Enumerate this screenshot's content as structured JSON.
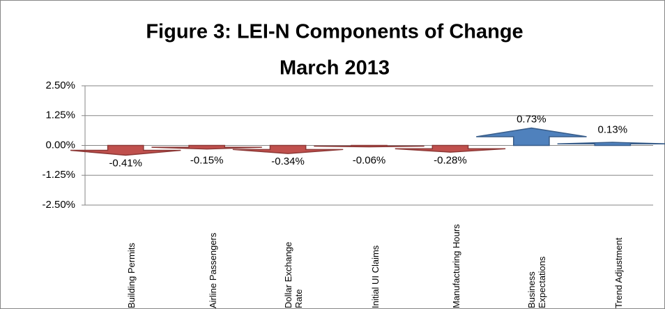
{
  "chart_data": {
    "type": "arrow-bar",
    "title": "Figure 3: LEI-N Components of Change",
    "subtitle": "March 2013",
    "categories": [
      "Building Permits",
      "Airline Passengers",
      "Dollar Exchange Rate",
      "Initial UI Claims",
      "Manufacturing Hours",
      "Business Expectations",
      "Trend Adjustment"
    ],
    "values": [
      -0.41,
      -0.15,
      -0.34,
      -0.06,
      -0.28,
      0.73,
      0.13
    ],
    "value_labels": [
      "-0.41%",
      "-0.15%",
      "-0.34%",
      "-0.06%",
      "-0.28%",
      "0.73%",
      "0.13%"
    ],
    "colors": [
      "#c0504d",
      "#c0504d",
      "#c0504d",
      "#c0504d",
      "#c0504d",
      "#4f81bd",
      "#4f81bd"
    ],
    "ylim": [
      -2.5,
      2.5
    ],
    "yticks": [
      {
        "value": 2.5,
        "label": "2.50%"
      },
      {
        "value": 1.25,
        "label": "1.25%"
      },
      {
        "value": 0,
        "label": "0.00%"
      },
      {
        "value": -1.25,
        "label": "-1.25%"
      },
      {
        "value": -2.5,
        "label": "-2.50%"
      }
    ],
    "grid": true
  }
}
